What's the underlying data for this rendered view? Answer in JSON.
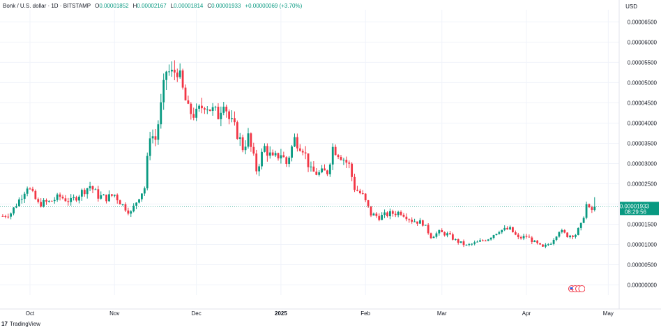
{
  "header": {
    "title": "Bonk / U.S. dollar · 1D · BITSTAMP",
    "open_label": "O",
    "open": "0.00001852",
    "high_label": "H",
    "high": "0.00002167",
    "low_label": "L",
    "low": "0.00001814",
    "close_label": "C",
    "close": "0.00001933",
    "change": "+0.00000069 (+3.70%)"
  },
  "currency": "USD",
  "price_tag": {
    "value": "0.00001933",
    "countdown": "08:29:56",
    "color": "#089981"
  },
  "footer": {
    "brand": "TradingView",
    "logo": "17"
  },
  "colors": {
    "up": "#089981",
    "down": "#f23645",
    "grid": "#f0f3fa",
    "text": "#131722"
  },
  "icons": {
    "footer_logo": "tradingview-logo-icon",
    "flags": "us-flag-events-icon"
  },
  "chart_data": {
    "type": "candlestick",
    "title": "Bonk / U.S. dollar · 1D · BITSTAMP",
    "y_axis_ticks": [
      "0.00000000",
      "0.00000500",
      "0.00001000",
      "0.00001500",
      "0.00002000",
      "0.00002500",
      "0.00003000",
      "0.00003500",
      "0.00004000",
      "0.00004500",
      "0.00005000",
      "0.00005500",
      "0.00006000",
      "0.00006500"
    ],
    "ylim": [
      -2.5e-06,
      6.8e-05
    ],
    "x_axis_ticks": [
      {
        "label": "Oct",
        "date": "2024-10-01"
      },
      {
        "label": "Nov",
        "date": "2024-11-01"
      },
      {
        "label": "Dec",
        "date": "2024-12-01"
      },
      {
        "label": "2025",
        "date": "2025-01-01",
        "bold": true
      },
      {
        "label": "Feb",
        "date": "2025-02-01"
      },
      {
        "label": "Mar",
        "date": "2025-03-01"
      },
      {
        "label": "Apr",
        "date": "2025-04-01"
      },
      {
        "label": "May",
        "date": "2025-05-01"
      }
    ],
    "xlim": [
      "2024-09-20",
      "2025-05-05"
    ],
    "grid": true,
    "units": "USD",
    "unit_scale": "1e-8",
    "keyframes": [
      {
        "date": "2024-09-21",
        "close": 1700
      },
      {
        "date": "2024-09-24",
        "close": 1780
      },
      {
        "date": "2024-09-27",
        "close": 2100
      },
      {
        "date": "2024-09-30",
        "close": 2450
      },
      {
        "date": "2024-10-04",
        "close": 2000
      },
      {
        "date": "2024-10-08",
        "close": 2050
      },
      {
        "date": "2024-10-12",
        "close": 2180
      },
      {
        "date": "2024-10-16",
        "close": 2060
      },
      {
        "date": "2024-10-20",
        "close": 2300
      },
      {
        "date": "2024-10-23",
        "close": 2450
      },
      {
        "date": "2024-10-26",
        "close": 2200
      },
      {
        "date": "2024-10-29",
        "close": 2150
      },
      {
        "date": "2024-11-01",
        "close": 2230
      },
      {
        "date": "2024-11-04",
        "close": 1970
      },
      {
        "date": "2024-11-07",
        "close": 1780
      },
      {
        "date": "2024-11-10",
        "close": 2200
      },
      {
        "date": "2024-11-12",
        "close": 2400
      },
      {
        "date": "2024-11-14",
        "close": 3750
      },
      {
        "date": "2024-11-16",
        "close": 3600
      },
      {
        "date": "2024-11-18",
        "close": 4400
      },
      {
        "date": "2024-11-20",
        "close": 5300
      },
      {
        "date": "2024-11-22",
        "close": 5200
      },
      {
        "date": "2024-11-24",
        "close": 5350
      },
      {
        "date": "2024-11-26",
        "close": 4800
      },
      {
        "date": "2024-11-28",
        "close": 4300
      },
      {
        "date": "2024-12-01",
        "close": 4200
      },
      {
        "date": "2024-12-04",
        "close": 4500
      },
      {
        "date": "2024-12-07",
        "close": 4300
      },
      {
        "date": "2024-12-09",
        "close": 4200
      },
      {
        "date": "2024-12-11",
        "close": 4600
      },
      {
        "date": "2024-12-13",
        "close": 4100
      },
      {
        "date": "2024-12-16",
        "close": 3750
      },
      {
        "date": "2024-12-18",
        "close": 3400
      },
      {
        "date": "2024-12-20",
        "close": 3650
      },
      {
        "date": "2024-12-23",
        "close": 2850
      },
      {
        "date": "2024-12-26",
        "close": 3400
      },
      {
        "date": "2024-12-29",
        "close": 3100
      },
      {
        "date": "2025-01-01",
        "close": 3250
      },
      {
        "date": "2025-01-03",
        "close": 3000
      },
      {
        "date": "2025-01-06",
        "close": 3600
      },
      {
        "date": "2025-01-09",
        "close": 3400
      },
      {
        "date": "2025-01-12",
        "close": 2800
      },
      {
        "date": "2025-01-15",
        "close": 2750
      },
      {
        "date": "2025-01-18",
        "close": 2800
      },
      {
        "date": "2025-01-20",
        "close": 3400
      },
      {
        "date": "2025-01-23",
        "close": 3200
      },
      {
        "date": "2025-01-26",
        "close": 2950
      },
      {
        "date": "2025-01-28",
        "close": 2400
      },
      {
        "date": "2025-01-31",
        "close": 2200
      },
      {
        "date": "2025-02-03",
        "close": 1750
      },
      {
        "date": "2025-02-06",
        "close": 1680
      },
      {
        "date": "2025-02-10",
        "close": 1760
      },
      {
        "date": "2025-02-14",
        "close": 1800
      },
      {
        "date": "2025-02-18",
        "close": 1600
      },
      {
        "date": "2025-02-22",
        "close": 1530
      },
      {
        "date": "2025-02-25",
        "close": 1200
      },
      {
        "date": "2025-02-28",
        "close": 1300
      },
      {
        "date": "2025-03-03",
        "close": 1250
      },
      {
        "date": "2025-03-06",
        "close": 1100
      },
      {
        "date": "2025-03-10",
        "close": 970
      },
      {
        "date": "2025-03-14",
        "close": 1050
      },
      {
        "date": "2025-03-18",
        "close": 1150
      },
      {
        "date": "2025-03-22",
        "close": 1350
      },
      {
        "date": "2025-03-26",
        "close": 1380
      },
      {
        "date": "2025-03-29",
        "close": 1150
      },
      {
        "date": "2025-04-01",
        "close": 1200
      },
      {
        "date": "2025-04-04",
        "close": 1050
      },
      {
        "date": "2025-04-07",
        "close": 920
      },
      {
        "date": "2025-04-10",
        "close": 1050
      },
      {
        "date": "2025-04-13",
        "close": 1350
      },
      {
        "date": "2025-04-16",
        "close": 1220
      },
      {
        "date": "2025-04-19",
        "close": 1250
      },
      {
        "date": "2025-04-21",
        "close": 1470
      },
      {
        "date": "2025-04-23",
        "close": 1980
      },
      {
        "date": "2025-04-24",
        "close": 1850
      },
      {
        "date": "2025-04-25",
        "close": 1852
      },
      {
        "date": "2025-04-26",
        "close": 1933
      }
    ]
  }
}
